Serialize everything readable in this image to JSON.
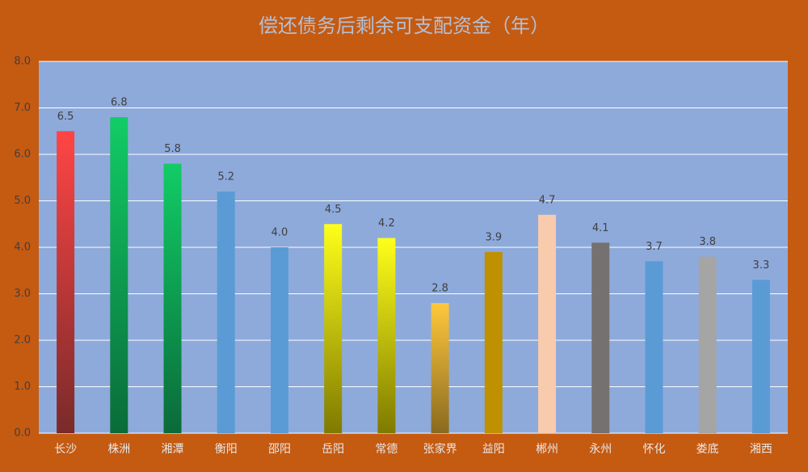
{
  "chart_data": {
    "type": "bar",
    "title": "偿还债务后剩余可支配资金（年）",
    "categories": [
      "长沙",
      "株洲",
      "湘潭",
      "衡阳",
      "邵阳",
      "岳阳",
      "常德",
      "张家界",
      "益阳",
      "郴州",
      "永州",
      "怀化",
      "娄底",
      "湘西"
    ],
    "values": [
      6.5,
      6.8,
      5.8,
      5.2,
      4.0,
      4.5,
      4.2,
      2.8,
      3.9,
      4.7,
      4.1,
      3.7,
      3.8,
      3.3
    ],
    "value_labels": [
      "6.5",
      "6.8",
      "5.8",
      "5.2",
      "4.0",
      "4.5",
      "4.2",
      "2.8",
      "3.9",
      "4.7",
      "4.1",
      "3.7",
      "3.8",
      "3.3"
    ],
    "bar_colors": [
      "#ff4545",
      "#12cc66",
      "#12cc66",
      "#5b9bd5",
      "#5b9bd5",
      "#ffff1a",
      "#ffff1a",
      "#ffc83d",
      "#bf9000",
      "#f8cbad",
      "#767171",
      "#5b9bd5",
      "#a5a5a5",
      "#5b9bd5"
    ],
    "bar_colors_bottom": [
      "#7a2a2a",
      "#0a6b3a",
      "#0a6b3a",
      "#5b9bd5",
      "#5b9bd5",
      "#7f7a00",
      "#7f7a00",
      "#8a6a20",
      "#bf9000",
      "#f8cbad",
      "#767171",
      "#5b9bd5",
      "#a5a5a5",
      "#5b9bd5"
    ],
    "ylim": [
      0,
      8
    ],
    "yticks": [
      {
        "value": 0,
        "label": "0.0"
      },
      {
        "value": 1,
        "label": "1.0"
      },
      {
        "value": 2,
        "label": "2.0"
      },
      {
        "value": 3,
        "label": "3.0"
      },
      {
        "value": 4,
        "label": "4.0"
      },
      {
        "value": 5,
        "label": "5.0"
      },
      {
        "value": 6,
        "label": "6.0"
      },
      {
        "value": 7,
        "label": "7.0"
      },
      {
        "value": 8,
        "label": "8.0"
      }
    ],
    "grid": true
  }
}
